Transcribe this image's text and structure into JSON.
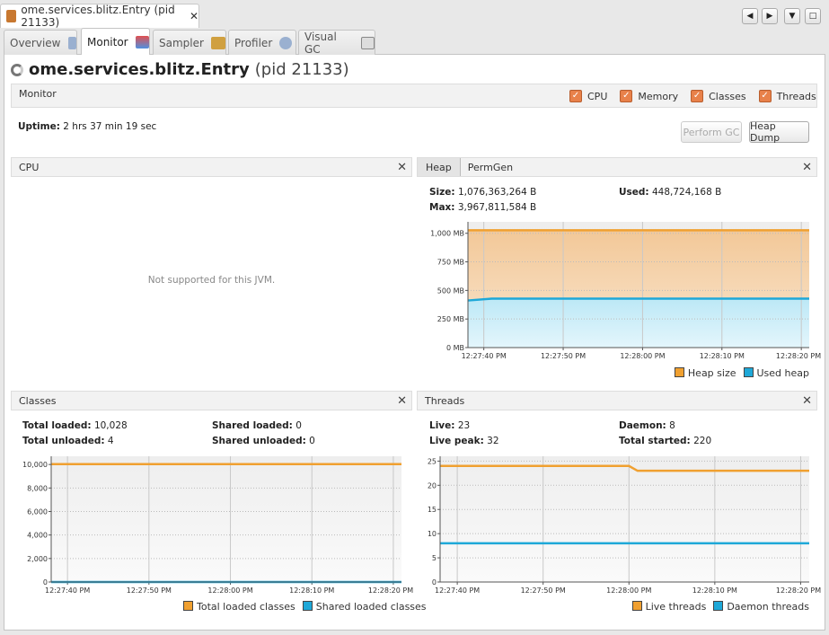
{
  "window": {
    "doc_tab": "ome.services.blitz.Entry (pid 21133)"
  },
  "tabs": [
    {
      "label": "Overview",
      "icon": "info-icon"
    },
    {
      "label": "Monitor",
      "icon": "monitor-chart-icon"
    },
    {
      "label": "Sampler",
      "icon": "sampler-icon"
    },
    {
      "label": "Profiler",
      "icon": "clock-icon"
    },
    {
      "label": "Visual GC",
      "icon": "visual-gc-icon"
    }
  ],
  "header": {
    "app": "ome.services.blitz.Entry",
    "pid": "(pid 21133)"
  },
  "monitor": {
    "label": "Monitor",
    "checkboxes": [
      {
        "label": "CPU",
        "checked": true
      },
      {
        "label": "Memory",
        "checked": true
      },
      {
        "label": "Classes",
        "checked": true
      },
      {
        "label": "Threads",
        "checked": true
      }
    ],
    "uptime_label": "Uptime:",
    "uptime": "2 hrs 37 min 19 sec",
    "perform_gc": "Perform GC",
    "heap_dump": "Heap Dump"
  },
  "cpu": {
    "title": "CPU",
    "message": "Not supported for this JVM."
  },
  "heap": {
    "tabs": [
      "Heap",
      "PermGen"
    ],
    "size_label": "Size:",
    "size": "1,076,363,264 B",
    "used_label": "Used:",
    "used": "448,724,168 B",
    "max_label": "Max:",
    "max": "3,967,811,584 B"
  },
  "classes": {
    "title": "Classes",
    "total_loaded_label": "Total loaded:",
    "total_loaded": "10,028",
    "shared_loaded_label": "Shared loaded:",
    "shared_loaded": "0",
    "total_unloaded_label": "Total unloaded:",
    "total_unloaded": "4",
    "shared_unloaded_label": "Shared unloaded:",
    "shared_unloaded": "0"
  },
  "threads": {
    "title": "Threads",
    "live_label": "Live:",
    "live": "23",
    "daemon_label": "Daemon:",
    "daemon": "8",
    "peak_label": "Live peak:",
    "peak": "32",
    "started_label": "Total started:",
    "started": "220"
  },
  "colors": {
    "orange": "#f0a030",
    "blue": "#1ea8d8",
    "check": "#e8814a"
  },
  "chart_data": [
    {
      "type": "area",
      "id": "heap",
      "xlim": [
        "12:27:38",
        "12:28:21"
      ],
      "ylim": [
        0,
        1100
      ],
      "yticks": [
        0,
        250,
        500,
        750,
        1000
      ],
      "ytick_labels": [
        "0 MB",
        "250 MB",
        "500 MB",
        "750 MB",
        "1,000 MB"
      ],
      "xticks": [
        "12:27:40",
        "12:27:50",
        "12:28:00",
        "12:28:10",
        "12:28:20"
      ],
      "xtick_labels": [
        "12:27:40 PM",
        "12:27:50 PM",
        "12:28:00 PM",
        "12:28:10 PM",
        "12:28:20 PM"
      ],
      "grid": true,
      "legend": "bottom-right",
      "series": [
        {
          "name": "Heap size",
          "color": "#f0a030",
          "points": [
            [
              "12:27:38",
              1026
            ],
            [
              "12:28:21",
              1026
            ]
          ]
        },
        {
          "name": "Used heap",
          "color": "#1ea8d8",
          "points": [
            [
              "12:27:38",
              412
            ],
            [
              "12:27:41",
              428
            ],
            [
              "12:28:21",
              428
            ]
          ]
        }
      ]
    },
    {
      "type": "line",
      "id": "classes",
      "xlim": [
        "12:27:38",
        "12:28:21"
      ],
      "ylim": [
        0,
        10700
      ],
      "yticks": [
        0,
        2000,
        4000,
        6000,
        8000,
        10000
      ],
      "ytick_labels": [
        "0",
        "2,000",
        "4,000",
        "6,000",
        "8,000",
        "10,000"
      ],
      "xticks": [
        "12:27:40",
        "12:27:50",
        "12:28:00",
        "12:28:10",
        "12:28:20"
      ],
      "xtick_labels": [
        "12:27:40 PM",
        "12:27:50 PM",
        "12:28:00 PM",
        "12:28:10 PM",
        "12:28:20 PM"
      ],
      "grid": true,
      "legend": "bottom-right",
      "series": [
        {
          "name": "Total loaded classes",
          "color": "#f0a030",
          "points": [
            [
              "12:27:38",
              10028
            ],
            [
              "12:28:21",
              10028
            ]
          ]
        },
        {
          "name": "Shared loaded classes",
          "color": "#1ea8d8",
          "points": [
            [
              "12:27:38",
              0
            ],
            [
              "12:28:21",
              0
            ]
          ]
        }
      ]
    },
    {
      "type": "line",
      "id": "threads",
      "xlim": [
        "12:27:38",
        "12:28:21"
      ],
      "ylim": [
        0,
        26
      ],
      "yticks": [
        0,
        5,
        10,
        15,
        20,
        25
      ],
      "ytick_labels": [
        "0",
        "5",
        "10",
        "15",
        "20",
        "25"
      ],
      "xticks": [
        "12:27:40",
        "12:27:50",
        "12:28:00",
        "12:28:10",
        "12:28:20"
      ],
      "xtick_labels": [
        "12:27:40 PM",
        "12:27:50 PM",
        "12:28:00 PM",
        "12:28:10 PM",
        "12:28:20 PM"
      ],
      "grid": true,
      "legend": "bottom-right",
      "series": [
        {
          "name": "Live threads",
          "color": "#f0a030",
          "points": [
            [
              "12:27:38",
              24
            ],
            [
              "12:28:00",
              24
            ],
            [
              "12:28:01",
              23
            ],
            [
              "12:28:21",
              23
            ]
          ]
        },
        {
          "name": "Daemon threads",
          "color": "#1ea8d8",
          "points": [
            [
              "12:27:38",
              8
            ],
            [
              "12:28:21",
              8
            ]
          ]
        }
      ]
    }
  ]
}
